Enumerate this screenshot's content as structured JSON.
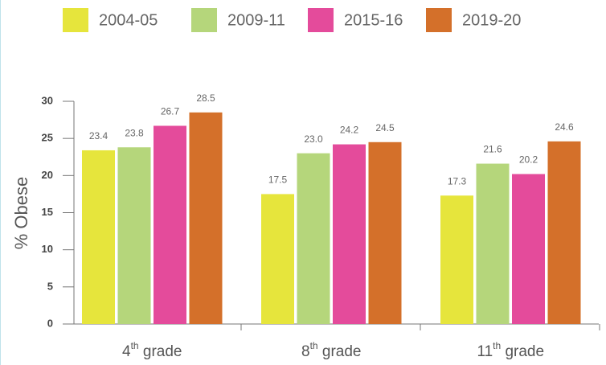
{
  "chart_data": {
    "type": "bar",
    "y_label": "% Obese",
    "categories": [
      "4th grade",
      "8th grade",
      "11th grade"
    ],
    "series": [
      {
        "name": "2004-05",
        "color": "#e6e53c",
        "values": [
          23.4,
          17.5,
          17.3
        ],
        "value_labels": [
          "23.4",
          "17.5",
          "17.3"
        ]
      },
      {
        "name": "2009-11",
        "color": "#b5d67b",
        "values": [
          23.8,
          23.0,
          21.6
        ],
        "value_labels": [
          "23.8",
          "23.0",
          "21.6"
        ]
      },
      {
        "name": "2015-16",
        "color": "#e44b9b",
        "values": [
          26.7,
          24.2,
          20.2
        ],
        "value_labels": [
          "26.7",
          "24.2",
          "20.2"
        ]
      },
      {
        "name": "2019-20",
        "color": "#d4702a",
        "values": [
          28.5,
          24.5,
          24.6
        ],
        "value_labels": [
          "28.5",
          "24.5",
          "24.6"
        ]
      }
    ],
    "ylim": [
      0,
      30
    ],
    "yticks": [
      0,
      5,
      10,
      15,
      20,
      25,
      30
    ],
    "grid": false,
    "legend": "top"
  }
}
